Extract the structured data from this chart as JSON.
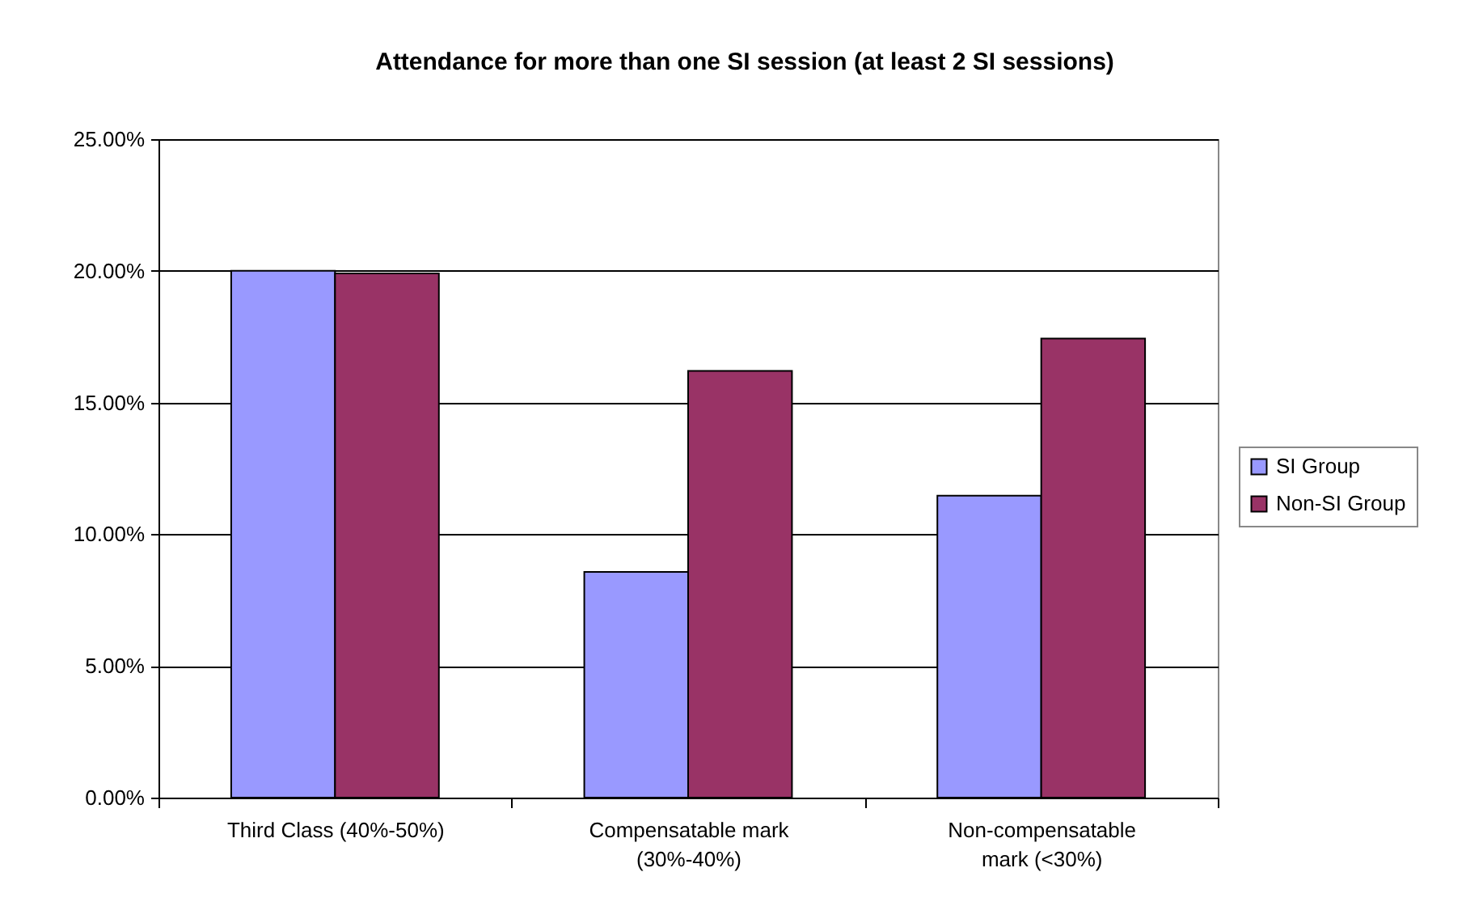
{
  "chart_data": {
    "type": "bar",
    "title": "Attendance for more than one SI session (at least 2 SI sessions)",
    "categories": [
      "Third Class (40%-50%)",
      "Compensatable mark\n(30%-40%)",
      "Non-compensatable\nmark (<30%)"
    ],
    "series": [
      {
        "name": "SI Group",
        "color": "#9999ff",
        "values": [
          20.0,
          8.57,
          11.46
        ]
      },
      {
        "name": "Non-SI Group",
        "color": "#993366",
        "values": [
          19.9,
          16.2,
          17.43
        ]
      }
    ],
    "ylim": [
      0,
      25
    ],
    "yticks": [
      {
        "value": 0,
        "label": "0.00%"
      },
      {
        "value": 5,
        "label": "5.00%"
      },
      {
        "value": 10,
        "label": "10.00%"
      },
      {
        "value": 15,
        "label": "15.00%"
      },
      {
        "value": 20,
        "label": "20.00%"
      },
      {
        "value": 25,
        "label": "25.00%"
      }
    ],
    "grid": "y",
    "legend": "right"
  }
}
